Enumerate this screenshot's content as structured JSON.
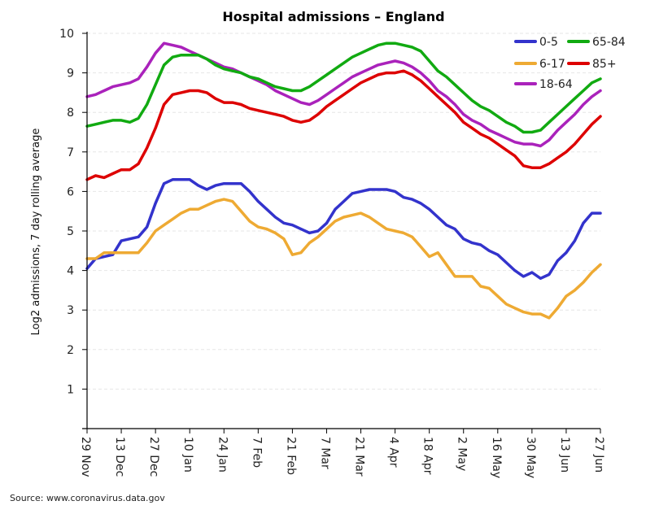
{
  "chart_data": {
    "type": "line",
    "title": "Hospital admissions – England",
    "xlabel": "",
    "ylabel": "Log2 admissions, 7 day rolling average",
    "ylim": [
      0,
      10
    ],
    "yticks": [
      1,
      2,
      3,
      4,
      5,
      6,
      7,
      8,
      9,
      10
    ],
    "grid": true,
    "legend_position": "top-right",
    "x_start": "29 Nov",
    "x_days_total": 210,
    "xticks": [
      {
        "day": 0,
        "label": "29 Nov"
      },
      {
        "day": 14,
        "label": "13 Dec"
      },
      {
        "day": 28,
        "label": "27 Dec"
      },
      {
        "day": 42,
        "label": "10 Jan"
      },
      {
        "day": 56,
        "label": "24 Jan"
      },
      {
        "day": 70,
        "label": "7 Feb"
      },
      {
        "day": 84,
        "label": "21 Feb"
      },
      {
        "day": 98,
        "label": "7 Mar"
      },
      {
        "day": 112,
        "label": "21 Mar"
      },
      {
        "day": 126,
        "label": "4 Apr"
      },
      {
        "day": 140,
        "label": "18 Apr"
      },
      {
        "day": 154,
        "label": "2 May"
      },
      {
        "day": 168,
        "label": "16 May"
      },
      {
        "day": 182,
        "label": "30 May"
      },
      {
        "day": 196,
        "label": "13 Jun"
      },
      {
        "day": 210,
        "label": "27 Jun"
      }
    ],
    "x_days": [
      0,
      3.5,
      7,
      10.5,
      14,
      17.5,
      21,
      24.5,
      28,
      31.5,
      35,
      38.5,
      42,
      45.5,
      49,
      52.5,
      56,
      59.5,
      63,
      66.5,
      70,
      73.5,
      77,
      80.5,
      84,
      87.5,
      91,
      94.5,
      98,
      101.5,
      105,
      108.5,
      112,
      115.5,
      119,
      122.5,
      126,
      129.5,
      133,
      136.5,
      140,
      143.5,
      147,
      150.5,
      154,
      157.5,
      161,
      164.5,
      168,
      171.5,
      175,
      178.5,
      182,
      185.5,
      189,
      192.5,
      196,
      199.5,
      203,
      206.5,
      210
    ],
    "series": [
      {
        "name": "0-5",
        "color": "#3333cc",
        "values": [
          4.05,
          4.3,
          4.35,
          4.4,
          4.75,
          4.8,
          4.85,
          5.1,
          5.7,
          6.2,
          6.3,
          6.3,
          6.3,
          6.15,
          6.05,
          6.15,
          6.2,
          6.2,
          6.2,
          6.0,
          5.75,
          5.55,
          5.35,
          5.2,
          5.15,
          5.05,
          4.95,
          5.0,
          5.2,
          5.55,
          5.75,
          5.95,
          6.0,
          6.05,
          6.05,
          6.05,
          6.0,
          5.85,
          5.8,
          5.7,
          5.55,
          5.35,
          5.15,
          5.05,
          4.8,
          4.7,
          4.65,
          4.5,
          4.4,
          4.2,
          4.0,
          3.85,
          3.95,
          3.8,
          3.9,
          4.25,
          4.45,
          4.75,
          5.2,
          5.45,
          5.45
        ]
      },
      {
        "name": "6-17",
        "color": "#eeaa33",
        "values": [
          4.3,
          4.3,
          4.45,
          4.45,
          4.45,
          4.45,
          4.45,
          4.7,
          5.0,
          5.15,
          5.3,
          5.45,
          5.55,
          5.55,
          5.65,
          5.75,
          5.8,
          5.75,
          5.5,
          5.25,
          5.1,
          5.05,
          4.95,
          4.8,
          4.4,
          4.45,
          4.7,
          4.85,
          5.05,
          5.25,
          5.35,
          5.4,
          5.45,
          5.35,
          5.2,
          5.05,
          5.0,
          4.95,
          4.85,
          4.6,
          4.35,
          4.45,
          4.15,
          3.85,
          3.85,
          3.85,
          3.6,
          3.55,
          3.35,
          3.15,
          3.05,
          2.95,
          2.9,
          2.9,
          2.8,
          3.05,
          3.35,
          3.5,
          3.7,
          3.95,
          4.15
        ]
      },
      {
        "name": "18-64",
        "color": "#aa22bb",
        "values": [
          8.4,
          8.45,
          8.55,
          8.65,
          8.7,
          8.75,
          8.85,
          9.15,
          9.5,
          9.75,
          9.7,
          9.65,
          9.55,
          9.45,
          9.35,
          9.25,
          9.15,
          9.1,
          9.0,
          8.9,
          8.8,
          8.7,
          8.55,
          8.45,
          8.35,
          8.25,
          8.2,
          8.3,
          8.45,
          8.6,
          8.75,
          8.9,
          9.0,
          9.1,
          9.2,
          9.25,
          9.3,
          9.25,
          9.15,
          9.0,
          8.8,
          8.55,
          8.4,
          8.2,
          7.95,
          7.8,
          7.7,
          7.55,
          7.45,
          7.35,
          7.25,
          7.2,
          7.2,
          7.15,
          7.3,
          7.55,
          7.75,
          7.95,
          8.2,
          8.4,
          8.55
        ]
      },
      {
        "name": "65-84",
        "color": "#11aa11",
        "values": [
          7.65,
          7.7,
          7.75,
          7.8,
          7.8,
          7.75,
          7.85,
          8.2,
          8.7,
          9.2,
          9.4,
          9.45,
          9.45,
          9.45,
          9.35,
          9.2,
          9.1,
          9.05,
          9.0,
          8.9,
          8.85,
          8.75,
          8.65,
          8.6,
          8.55,
          8.55,
          8.65,
          8.8,
          8.95,
          9.1,
          9.25,
          9.4,
          9.5,
          9.6,
          9.7,
          9.75,
          9.75,
          9.7,
          9.65,
          9.55,
          9.3,
          9.05,
          8.9,
          8.7,
          8.5,
          8.3,
          8.15,
          8.05,
          7.9,
          7.75,
          7.65,
          7.5,
          7.5,
          7.55,
          7.75,
          7.95,
          8.15,
          8.35,
          8.55,
          8.75,
          8.85
        ]
      },
      {
        "name": "85+",
        "color": "#dd0000",
        "values": [
          6.3,
          6.4,
          6.35,
          6.45,
          6.55,
          6.55,
          6.7,
          7.1,
          7.6,
          8.2,
          8.45,
          8.5,
          8.55,
          8.55,
          8.5,
          8.35,
          8.25,
          8.25,
          8.2,
          8.1,
          8.05,
          8.0,
          7.95,
          7.9,
          7.8,
          7.75,
          7.8,
          7.95,
          8.15,
          8.3,
          8.45,
          8.6,
          8.75,
          8.85,
          8.95,
          9.0,
          9.0,
          9.05,
          8.95,
          8.8,
          8.6,
          8.4,
          8.2,
          8.0,
          7.75,
          7.6,
          7.45,
          7.35,
          7.2,
          7.05,
          6.9,
          6.65,
          6.6,
          6.6,
          6.7,
          6.85,
          7.0,
          7.2,
          7.45,
          7.7,
          7.9
        ]
      }
    ],
    "legend": [
      {
        "label": "0-5",
        "color": "#3333cc"
      },
      {
        "label": "65-84",
        "color": "#11aa11"
      },
      {
        "label": "6-17",
        "color": "#eeaa33"
      },
      {
        "label": "85+",
        "color": "#dd0000"
      },
      {
        "label": "18-64",
        "color": "#aa22bb"
      }
    ]
  },
  "source": "Source: www.coronavirus.data.gov"
}
